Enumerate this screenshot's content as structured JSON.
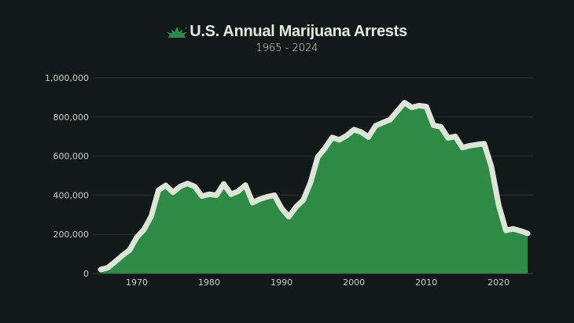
{
  "chart_data": {
    "type": "area",
    "title": "U.S. Annual Marijuana Arrests",
    "subtitle": "1965 - 2024",
    "xlabel": "",
    "ylabel": "",
    "xlim": [
      1965,
      2024
    ],
    "ylim": [
      0,
      1000000
    ],
    "x_ticks": [
      1970,
      1980,
      1990,
      2000,
      2010,
      2020
    ],
    "y_ticks": [
      0,
      200000,
      400000,
      600000,
      800000,
      1000000
    ],
    "y_tick_labels": [
      "0",
      "200,000",
      "400,000",
      "600,000",
      "800,000",
      "1,000,000"
    ],
    "grid": "horizontal",
    "colors": {
      "fill": "#2f8a45",
      "line": "#dde5d8",
      "background": "#111a19",
      "grid": "#2a3231",
      "logo": "#2f8a45"
    },
    "x": [
      1965,
      1966,
      1967,
      1968,
      1969,
      1970,
      1971,
      1972,
      1973,
      1974,
      1975,
      1976,
      1977,
      1978,
      1979,
      1980,
      1981,
      1982,
      1983,
      1984,
      1985,
      1986,
      1987,
      1988,
      1989,
      1990,
      1991,
      1992,
      1993,
      1994,
      1995,
      1996,
      1997,
      1998,
      1999,
      2000,
      2001,
      2002,
      2003,
      2004,
      2005,
      2006,
      2007,
      2008,
      2009,
      2010,
      2011,
      2012,
      2013,
      2014,
      2015,
      2016,
      2017,
      2018,
      2019,
      2020,
      2021,
      2022,
      2023,
      2024
    ],
    "values": [
      20000,
      30000,
      60000,
      92000,
      120000,
      185000,
      225000,
      293000,
      426000,
      450000,
      415000,
      445000,
      460000,
      445000,
      395000,
      405000,
      400000,
      458000,
      405000,
      420000,
      452000,
      362000,
      380000,
      392000,
      400000,
      333000,
      290000,
      340000,
      375000,
      465000,
      595000,
      640000,
      695000,
      683000,
      705000,
      735000,
      723000,
      697000,
      755000,
      771000,
      786000,
      830000,
      873000,
      848000,
      858000,
      853000,
      757000,
      750000,
      693000,
      700000,
      643000,
      653000,
      659000,
      663000,
      545000,
      350000,
      220000,
      228000,
      218000,
      205000
    ]
  }
}
